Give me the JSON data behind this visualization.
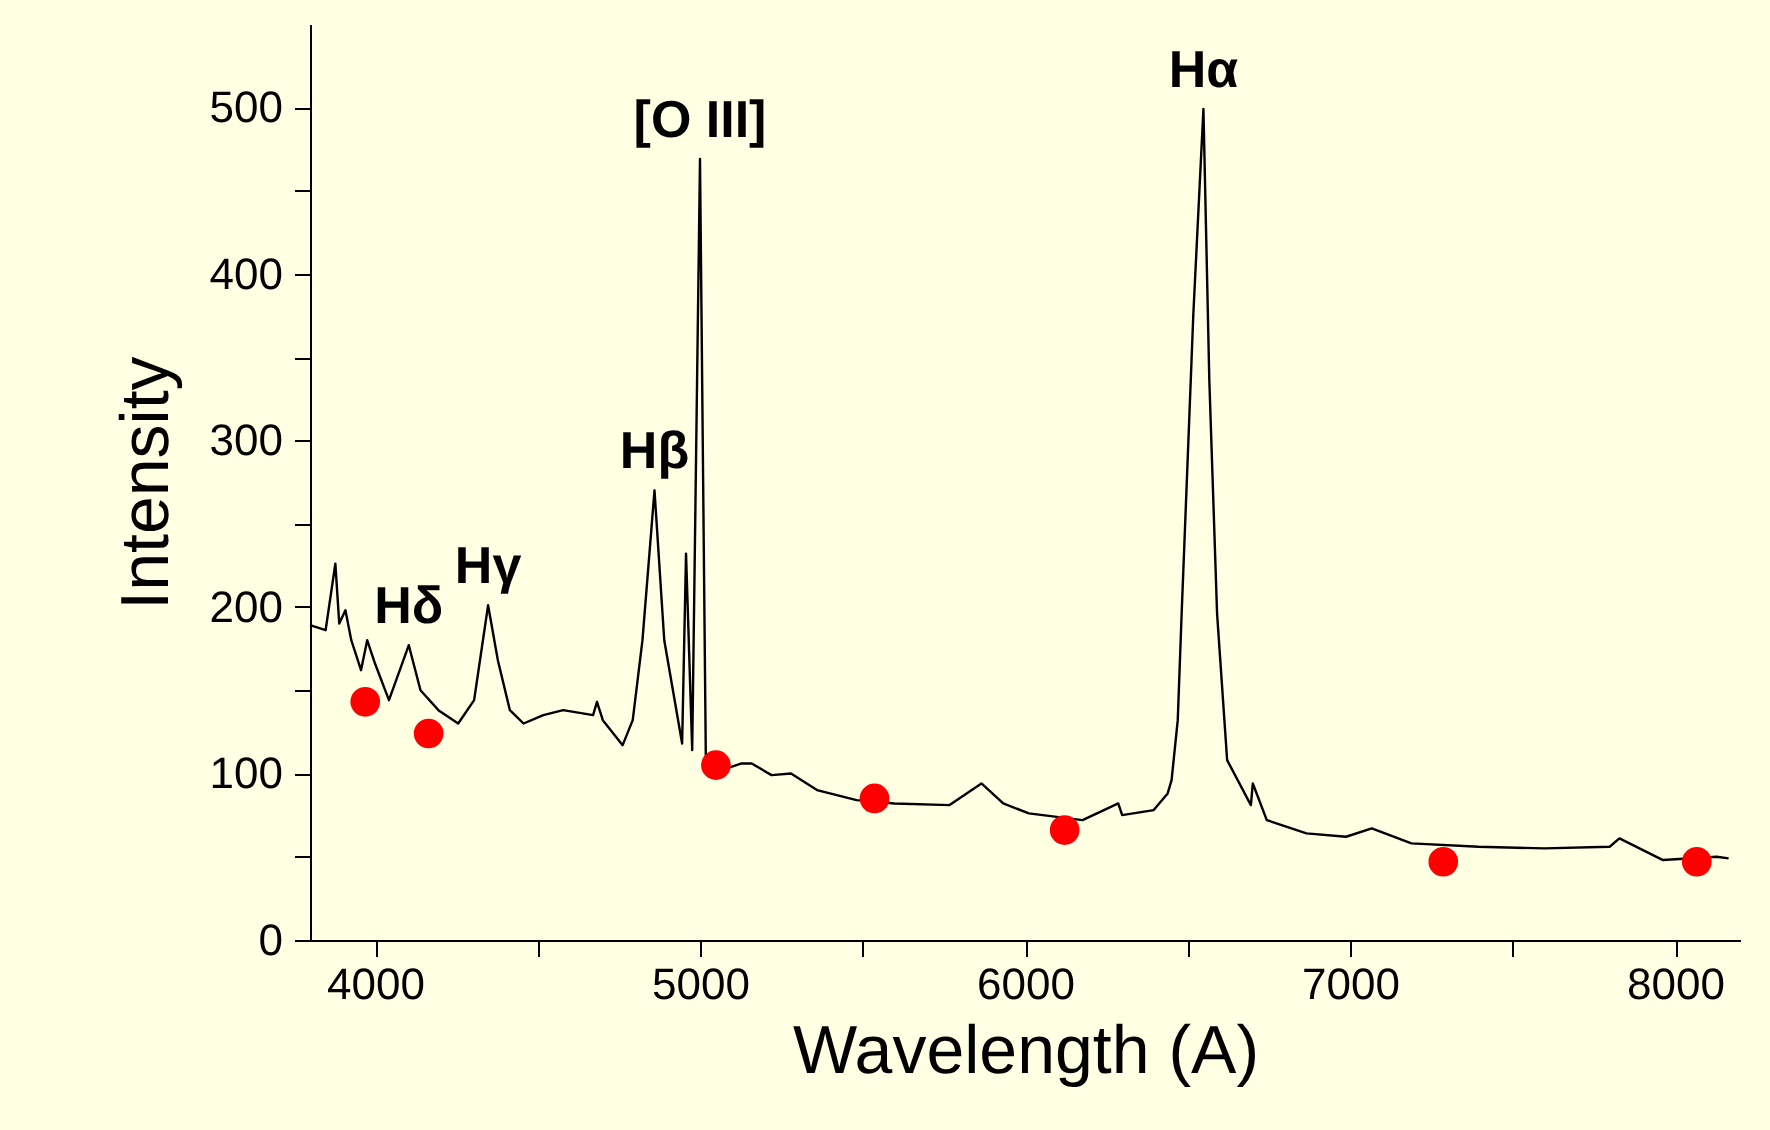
{
  "chart_data": {
    "type": "line",
    "xlabel": "Wavelength (A)",
    "ylabel": "Intensity",
    "xlim": [
      3800,
      8200
    ],
    "ylim": [
      0,
      550
    ],
    "xticks": [
      4000,
      {
        "value": 4500,
        "label": null
      },
      5000,
      {
        "value": 5500,
        "label": null
      },
      6000,
      {
        "value": 6500,
        "label": null
      },
      7000,
      {
        "value": 7500,
        "label": null
      },
      8000
    ],
    "yticks": [
      0,
      {
        "value": 50,
        "label": null
      },
      100,
      {
        "value": 150,
        "label": null
      },
      200,
      {
        "value": 250,
        "label": null
      },
      300,
      {
        "value": 350,
        "label": null
      },
      400,
      {
        "value": 450,
        "label": null
      },
      500
    ],
    "grid": false,
    "series": [
      {
        "color": "#000000",
        "line_style": "solid",
        "marker": "none",
        "x": [
          3800,
          3848,
          3878,
          3890,
          3909,
          3927,
          3957,
          3976,
          4000,
          4043,
          4104,
          4140,
          4195,
          4256,
          4305,
          4348,
          4378,
          4415,
          4457,
          4518,
          4579,
          4671,
          4683,
          4701,
          4762,
          4793,
          4823,
          4860,
          4890,
          4945,
          4957,
          4976,
          5000,
          5018,
          5067,
          5128,
          5159,
          5220,
          5280,
          5360,
          5482,
          5598,
          5768,
          5866,
          5933,
          6012,
          6177,
          6287,
          6299,
          6396,
          6439,
          6451,
          6470,
          6482,
          6518,
          6549,
          6567,
          6591,
          6622,
          6695,
          6701,
          6744,
          6866,
          6988,
          7067,
          7189,
          7396,
          7598,
          7799,
          7829,
          7963,
          8128,
          8165
        ],
        "values": [
          189,
          186,
          226,
          190,
          198,
          180,
          162,
          180,
          166,
          144,
          177,
          150,
          138,
          130,
          144,
          201,
          168,
          138,
          130,
          135,
          138,
          135,
          143,
          132,
          117,
          132,
          180,
          270,
          180,
          118,
          232,
          114,
          469,
          108,
          102,
          106,
          106,
          99,
          100,
          90,
          84,
          82,
          81,
          94,
          82,
          76,
          72,
          82,
          75,
          78,
          88,
          96,
          132,
          196,
          376,
          499,
          337,
          196,
          108,
          81,
          94,
          72,
          64,
          62,
          67,
          58,
          56,
          55,
          56,
          61,
          48,
          50,
          49
        ]
      },
      {
        "type": "scatter",
        "color": "#ff0000",
        "marker": "circle",
        "x": [
          3970,
          4165,
          5049,
          5537,
          6122,
          7287,
          8067
        ],
        "values": [
          143,
          124,
          105,
          85,
          66,
          47,
          47
        ]
      }
    ],
    "annotations": [
      {
        "text": "Hδ",
        "x": 4104,
        "y": 177
      },
      {
        "text": "Hγ",
        "x": 4348,
        "y": 201
      },
      {
        "text": "Hβ",
        "x": 4860,
        "y": 270
      },
      {
        "text": "[O III]",
        "x": 5000,
        "y": 469
      },
      {
        "text": "Hα",
        "x": 6549,
        "y": 499
      }
    ]
  }
}
